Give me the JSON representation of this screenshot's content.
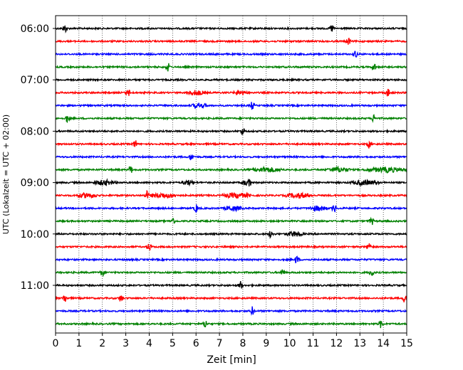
{
  "chart_data": {
    "type": "line",
    "title": "",
    "xlabel": "Zeit  [min]",
    "ylabel": "UTC (Lokalzeit = UTC + 02:00)",
    "xlim": [
      0,
      15
    ],
    "x_ticks": [
      "0",
      "1",
      "2",
      "3",
      "4",
      "5",
      "6",
      "7",
      "8",
      "9",
      "10",
      "11",
      "12",
      "13",
      "14",
      "15"
    ],
    "y_tick_labels": [
      "06:00",
      "07:00",
      "08:00",
      "09:00",
      "10:00",
      "11:00"
    ],
    "trace_interval_minutes": 15,
    "trace_colors": [
      "#000000",
      "#ff0000",
      "#0000ff",
      "#008000"
    ],
    "grid": "vertical dotted",
    "traces": [
      {
        "start": "06:00",
        "color": "#000000",
        "spikes": [
          0.4,
          11.8
        ],
        "bursts": []
      },
      {
        "start": "06:15",
        "color": "#ff0000",
        "spikes": [
          12.5
        ],
        "bursts": []
      },
      {
        "start": "06:30",
        "color": "#0000ff",
        "spikes": [
          12.8
        ],
        "bursts": []
      },
      {
        "start": "06:45",
        "color": "#008000",
        "spikes": [
          4.8,
          13.6
        ],
        "bursts": []
      },
      {
        "start": "07:00",
        "color": "#000000",
        "spikes": [],
        "bursts": []
      },
      {
        "start": "07:15",
        "color": "#ff0000",
        "spikes": [
          3.1,
          14.2
        ],
        "bursts": [
          [
            5.6,
            6.4
          ],
          [
            7.6,
            8.2
          ]
        ]
      },
      {
        "start": "07:30",
        "color": "#0000ff",
        "spikes": [
          8.4
        ],
        "bursts": [
          [
            5.8,
            6.5
          ]
        ]
      },
      {
        "start": "07:45",
        "color": "#008000",
        "spikes": [
          0.5,
          13.6
        ],
        "bursts": []
      },
      {
        "start": "08:00",
        "color": "#000000",
        "spikes": [
          8.0
        ],
        "bursts": []
      },
      {
        "start": "08:15",
        "color": "#ff0000",
        "spikes": [
          3.4,
          13.4
        ],
        "bursts": []
      },
      {
        "start": "08:30",
        "color": "#0000ff",
        "spikes": [
          5.8
        ],
        "bursts": []
      },
      {
        "start": "08:45",
        "color": "#008000",
        "spikes": [
          3.2
        ],
        "bursts": [
          [
            8.4,
            9.7
          ],
          [
            11.6,
            12.6
          ],
          [
            13.2,
            15.0
          ]
        ]
      },
      {
        "start": "09:00",
        "color": "#000000",
        "spikes": [
          8.3
        ],
        "bursts": [
          [
            1.6,
            2.6
          ],
          [
            5.4,
            5.9
          ],
          [
            7.9,
            8.4
          ],
          [
            12.6,
            13.8
          ]
        ]
      },
      {
        "start": "09:15",
        "color": "#ff0000",
        "spikes": [
          3.9
        ],
        "bursts": [
          [
            0.9,
            1.8
          ],
          [
            3.9,
            5.3
          ],
          [
            7.1,
            8.4
          ],
          [
            9.8,
            11.0
          ]
        ]
      },
      {
        "start": "09:30",
        "color": "#0000ff",
        "spikes": [
          6.0,
          11.9
        ],
        "bursts": [
          [
            7.2,
            8.0
          ],
          [
            10.8,
            11.6
          ]
        ]
      },
      {
        "start": "09:45",
        "color": "#008000",
        "spikes": [
          5.0,
          13.5
        ],
        "bursts": []
      },
      {
        "start": "10:00",
        "color": "#000000",
        "spikes": [
          9.2
        ],
        "bursts": [
          [
            9.8,
            10.6
          ]
        ]
      },
      {
        "start": "10:15",
        "color": "#ff0000",
        "spikes": [
          4.0,
          13.4
        ],
        "bursts": []
      },
      {
        "start": "10:30",
        "color": "#0000ff",
        "spikes": [
          10.3
        ],
        "bursts": []
      },
      {
        "start": "10:45",
        "color": "#008000",
        "spikes": [
          2.0,
          9.7,
          13.5
        ],
        "bursts": []
      },
      {
        "start": "11:00",
        "color": "#000000",
        "spikes": [
          7.9
        ],
        "bursts": []
      },
      {
        "start": "11:15",
        "color": "#ff0000",
        "spikes": [
          0.4,
          2.8,
          14.9
        ],
        "bursts": []
      },
      {
        "start": "11:30",
        "color": "#0000ff",
        "spikes": [
          8.4
        ],
        "bursts": []
      },
      {
        "start": "11:45",
        "color": "#008000",
        "spikes": [
          6.4,
          13.9
        ],
        "bursts": []
      }
    ]
  }
}
